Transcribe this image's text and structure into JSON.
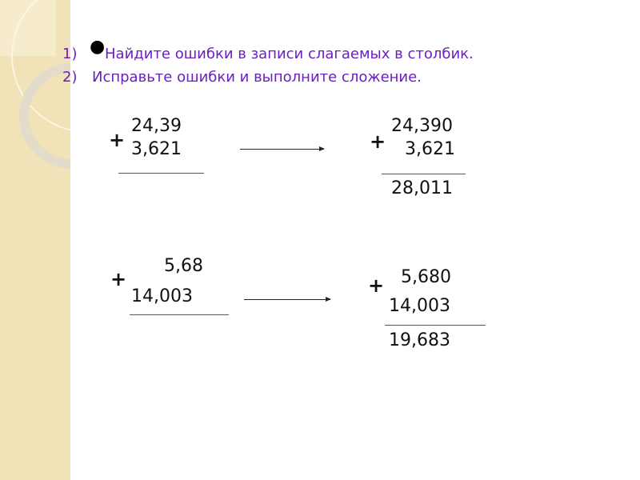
{
  "tasks": [
    {
      "marker": "1)",
      "text": "Найдите ошибки в записи слагаемых в столбик."
    },
    {
      "marker": "2)",
      "text": "Исправьте ошибки и выполните сложение."
    }
  ],
  "operator": "+",
  "problem1": {
    "wrong": {
      "a": "24,39",
      "b": "3,621"
    },
    "fixed": {
      "a": "24,390",
      "b": "3,621",
      "sum": "28,011"
    }
  },
  "problem2": {
    "wrong": {
      "a": "5,68",
      "b": "14,003"
    },
    "fixed": {
      "a": "5,680",
      "b": "14,003",
      "sum": "19,683"
    }
  },
  "colors": {
    "task_text": "#6a1fc0",
    "sidebar": "#f1e2b7"
  }
}
